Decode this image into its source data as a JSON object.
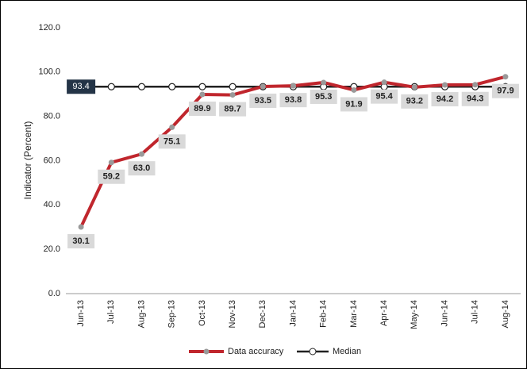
{
  "chart_data": {
    "type": "line",
    "y_label": "Indicator (Percent)",
    "categories": [
      "Jun-13",
      "Jul-13",
      "Aug-13",
      "Sep-13",
      "Oct-13",
      "Nov-13",
      "Dec-13",
      "Jan-14",
      "Feb-14",
      "Mar-14",
      "Apr-14",
      "May-14",
      "Jun-14",
      "Jul-14",
      "Aug-14"
    ],
    "series": [
      {
        "name": "Data accuracy",
        "color": "#c0262d",
        "marker_color": "#9a9a9a",
        "values": [
          30.1,
          59.2,
          63.0,
          75.1,
          89.9,
          89.7,
          93.5,
          93.8,
          95.3,
          91.9,
          95.4,
          93.2,
          94.2,
          94.3,
          97.9
        ],
        "value_labels": [
          "30.1",
          "59.2",
          "63.0",
          "75.1",
          "89.9",
          "89.7",
          "93.5",
          "93.8",
          "95.3",
          "91.9",
          "95.4",
          "93.2",
          "94.2",
          "94.3",
          "97.9"
        ]
      },
      {
        "name": "Median",
        "color": "#222222",
        "values": [
          93.4,
          93.4,
          93.4,
          93.4,
          93.4,
          93.4,
          93.4,
          93.4,
          93.4,
          93.4,
          93.4,
          93.4,
          93.4,
          93.4,
          93.4
        ]
      }
    ],
    "ylim": [
      0,
      120
    ],
    "yticks": [
      {
        "value": 0,
        "label": "0.0"
      },
      {
        "value": 20,
        "label": "20.0"
      },
      {
        "value": 40,
        "label": "40.0"
      },
      {
        "value": 60,
        "label": "60.0"
      },
      {
        "value": 80,
        "label": "80.0"
      },
      {
        "value": 100,
        "label": "100.0"
      },
      {
        "value": 120,
        "label": "120.0"
      }
    ],
    "legend": "bottom"
  }
}
